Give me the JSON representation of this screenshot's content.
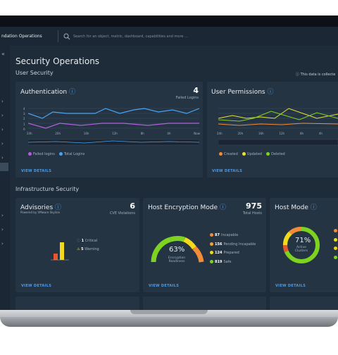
{
  "top_bar": {
    "app_name": "ndation Operations",
    "search_placeholder": "Search for an object, metric, dashboard, capabilities and more ..."
  },
  "page": {
    "title": "Security Operations",
    "user_section": "User Security",
    "data_note": "This data is collecte",
    "infra_section": "Infrastructure Security"
  },
  "authentication": {
    "title": "Authentication",
    "count": 4,
    "count_label": "Failed Logins",
    "y_ticks": [
      "4",
      "3",
      "2",
      "1",
      "0"
    ],
    "x_ticks": [
      "24h",
      "20h",
      "16h",
      "12h",
      "8h",
      "4h",
      "Now"
    ],
    "legend": [
      "Failed logins",
      "Total Logins"
    ],
    "link": "VIEW DETAILS"
  },
  "user_permissions": {
    "title": "User Permissions",
    "x_ticks": [
      "24h",
      "20h",
      "16h",
      "12h",
      "8h",
      "4h"
    ],
    "legend": [
      "Created",
      "Updated",
      "Deleted"
    ],
    "link": "VIEW DETAILS"
  },
  "advisories": {
    "title": "Advisories",
    "subtitle": "Powered by VMware Skyline",
    "count": 6,
    "count_label": "CVE Violations",
    "items": [
      {
        "count": 1,
        "label": "Critical"
      },
      {
        "count": 5,
        "label": "Warning"
      }
    ],
    "link": "VIEW DETAILS"
  },
  "host_encryption": {
    "title": "Host Encryption Mode",
    "count": 975,
    "count_label": "Total Hosts",
    "gauge_value": "63%",
    "gauge_label": "Encryption Readiness",
    "items": [
      {
        "count": 87,
        "label": "Incapable"
      },
      {
        "count": 156,
        "label": "Pending Incapable"
      },
      {
        "count": 124,
        "label": "Prepared"
      },
      {
        "count": 819,
        "label": "Safe"
      }
    ],
    "link": "VIEW DETAILS"
  },
  "host_mode": {
    "title": "Host Mode",
    "ring_value": "71%",
    "ring_label": "Active Clusters",
    "link": "VIEW DETAILS"
  }
}
